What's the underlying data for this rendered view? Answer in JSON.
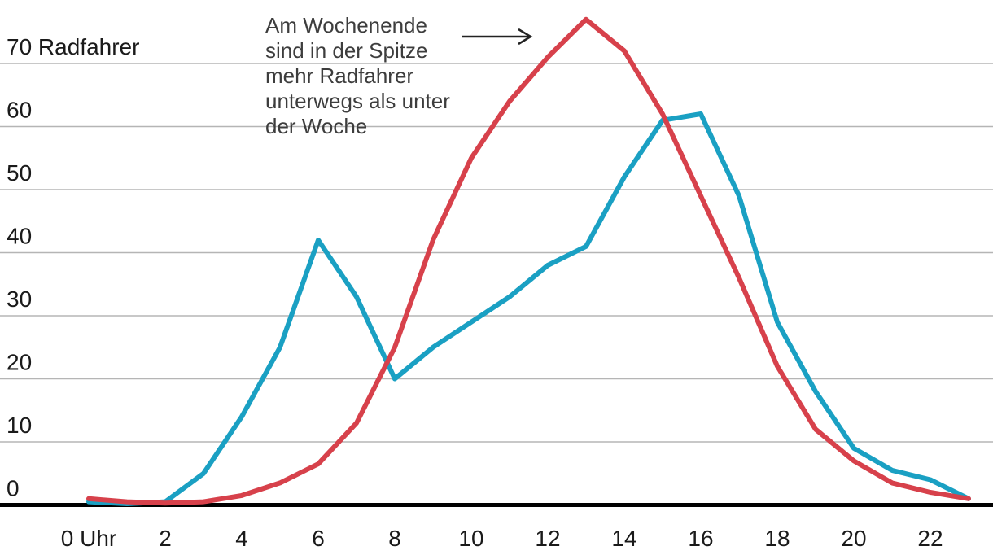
{
  "annotation": {
    "lines": [
      "Am Wochenende",
      "sind in der Spitze",
      "mehr Radfahrer",
      "unterwegs als unter",
      "der Woche"
    ],
    "full_text": "Am Wochenende sind in der Spitze mehr Radfahrer unterwegs als unter der Woche"
  },
  "colors": {
    "weekday_line": "#1aa0c3",
    "weekend_line": "#d7414b",
    "gridline": "#b5b5b5",
    "axis": "#000000",
    "tick_text": "#1a1a1a",
    "annotation_text": "#3d3d3d",
    "arrow": "#222222"
  },
  "chart_data": {
    "type": "line",
    "x": [
      0,
      1,
      2,
      3,
      4,
      5,
      6,
      7,
      8,
      9,
      10,
      11,
      12,
      13,
      14,
      15,
      16,
      17,
      18,
      19,
      20,
      21,
      22,
      23
    ],
    "x_unit": "Uhr",
    "x_tick_hours": [
      0,
      2,
      4,
      6,
      8,
      10,
      12,
      14,
      16,
      18,
      20,
      22
    ],
    "x_tick_labels": [
      "0 Uhr",
      "2",
      "4",
      "6",
      "8",
      "10",
      "12",
      "14",
      "16",
      "18",
      "20",
      "22"
    ],
    "y_ticks": [
      0,
      10,
      20,
      30,
      40,
      50,
      60,
      70
    ],
    "y_tick_labels": [
      "0",
      "10",
      "20",
      "30",
      "40",
      "50",
      "60",
      "70 Radfahrer"
    ],
    "ylabel": "Radfahrer",
    "ylim": [
      0,
      78
    ],
    "xlim": [
      0,
      23
    ],
    "grid": true,
    "legend_position": "none",
    "series": [
      {
        "name": "unter der Woche",
        "color": "#1aa0c3",
        "values": [
          0.5,
          0.2,
          0.5,
          5,
          14,
          25,
          42,
          33,
          20,
          25,
          29,
          33,
          38,
          41,
          52,
          61,
          62,
          49,
          29,
          18,
          9,
          5.5,
          4,
          1
        ]
      },
      {
        "name": "Am Wochenende",
        "color": "#d7414b",
        "values": [
          1,
          0.5,
          0.3,
          0.5,
          1.5,
          3.5,
          6.5,
          13,
          25,
          42,
          55,
          64,
          71,
          77,
          72,
          62,
          49,
          36,
          22,
          12,
          7,
          3.5,
          2,
          1
        ]
      }
    ],
    "annotation": "Am Wochenende sind in der Spitze mehr Radfahrer unterwegs als unter der Woche"
  }
}
